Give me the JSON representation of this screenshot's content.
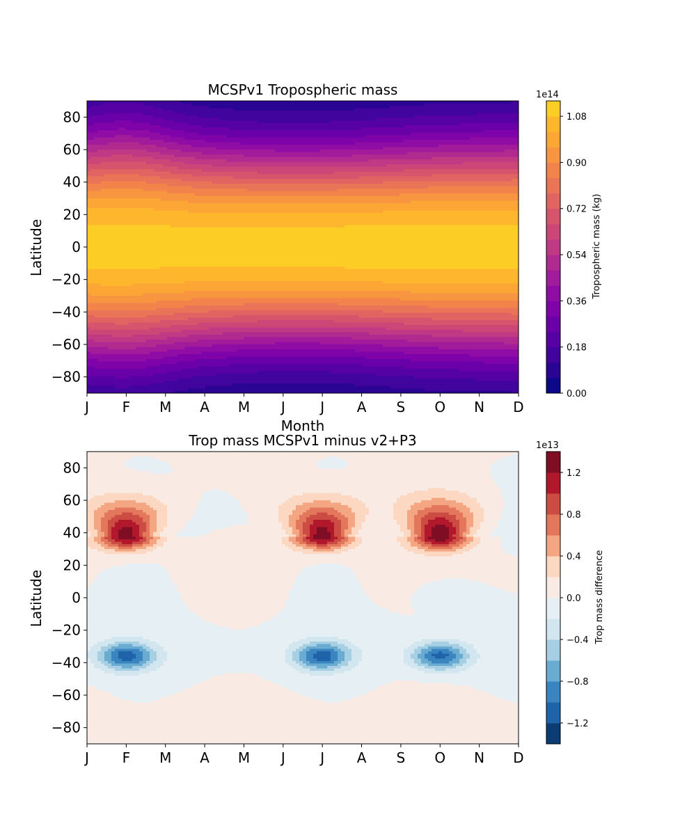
{
  "chart_data": [
    {
      "type": "heatmap",
      "title": "MCSPv1 Tropospheric mass",
      "xlabel": "Month",
      "ylabel": "Latitude",
      "x_tick_labels": [
        "J",
        "F",
        "M",
        "A",
        "M",
        "J",
        "J",
        "A",
        "S",
        "O",
        "N",
        "D"
      ],
      "x": [
        1,
        2,
        3,
        4,
        5,
        6,
        7,
        8,
        9,
        10,
        11,
        12
      ],
      "y_ticks": [
        80,
        60,
        40,
        20,
        0,
        -20,
        -40,
        -60,
        -80
      ],
      "y_tick_labels": [
        "80",
        "60",
        "40",
        "20",
        "0",
        "−20",
        "−40",
        "−60",
        "−80"
      ],
      "ylim": [
        -90,
        90
      ],
      "colormap": "plasma",
      "colorbar": {
        "label": "Tropospheric mass (kg)",
        "offset_text": "1e14",
        "ticks": [
          0.0,
          0.18,
          0.36,
          0.54,
          0.72,
          0.9,
          1.08
        ],
        "tick_labels": [
          "0.00",
          "0.18",
          "0.36",
          "0.54",
          "0.72",
          "0.90",
          "1.08"
        ],
        "range": [
          0.0,
          1.14
        ],
        "level_step": 0.06,
        "unit_multiplier": 100000000000000.0,
        "colors": [
          "#0d0887",
          "#2a0593",
          "#41049d",
          "#5601a4",
          "#6a00a8",
          "#7e03a8",
          "#8f0da4",
          "#a11b9b",
          "#b12a90",
          "#bf3984",
          "#cc4778",
          "#d6556d",
          "#e16462",
          "#ea7457",
          "#f2844b",
          "#f89540",
          "#fca636",
          "#feb72d",
          "#fccd25",
          "#f7e225",
          "#f0f921"
        ]
      },
      "description_values": {
        "equator_value": 1.1,
        "pole_value": 0.01,
        "unit": "1e14 kg"
      }
    },
    {
      "type": "heatmap",
      "title": "Trop mass MCSPv1 minus v2+P3",
      "xlabel": "",
      "ylabel": "Latitude",
      "x_tick_labels": [
        "J",
        "F",
        "M",
        "A",
        "M",
        "J",
        "J",
        "A",
        "S",
        "O",
        "N",
        "D"
      ],
      "x": [
        1,
        2,
        3,
        4,
        5,
        6,
        7,
        8,
        9,
        10,
        11,
        12
      ],
      "y_ticks": [
        80,
        60,
        40,
        20,
        0,
        -20,
        -40,
        -60,
        -80
      ],
      "y_tick_labels": [
        "80",
        "60",
        "40",
        "20",
        "0",
        "−20",
        "−40",
        "−60",
        "−80"
      ],
      "ylim": [
        -90,
        90
      ],
      "colormap": "RdBu_r",
      "colorbar": {
        "label": "Trop mass difference",
        "offset_text": "1e13",
        "ticks": [
          -1.2,
          -0.8,
          -0.4,
          0.0,
          0.4,
          0.8,
          1.2
        ],
        "tick_labels": [
          "−1.2",
          "−0.8",
          "−0.4",
          "0.0",
          "0.4",
          "0.8",
          "1.2"
        ],
        "range": [
          -1.4,
          1.4
        ],
        "level_step": 0.2,
        "unit_multiplier": 10000000000000.0,
        "colors": [
          "#0b3d73",
          "#1f63a8",
          "#3a85c0",
          "#6aabd1",
          "#a7cfe4",
          "#d2e6f0",
          "#e6eff4",
          "#f9ebe4",
          "#fcd7c2",
          "#f4a683",
          "#e3775c",
          "#cc4c44",
          "#b2182b",
          "#7f0d24"
        ]
      },
      "features": [
        {
          "kind": "maximum",
          "month": 2,
          "lat": 38,
          "value": 1.35
        },
        {
          "kind": "maximum",
          "month": 7,
          "lat": 38,
          "value": 1.35
        },
        {
          "kind": "maximum",
          "month": 10,
          "lat": 38,
          "value": 1.35
        },
        {
          "kind": "minimum",
          "month": 2,
          "lat": -36,
          "value": -1.05
        },
        {
          "kind": "minimum",
          "month": 7,
          "lat": -36,
          "value": -1.05
        },
        {
          "kind": "minimum",
          "month": 10,
          "lat": -36,
          "value": -1.05
        }
      ]
    }
  ]
}
